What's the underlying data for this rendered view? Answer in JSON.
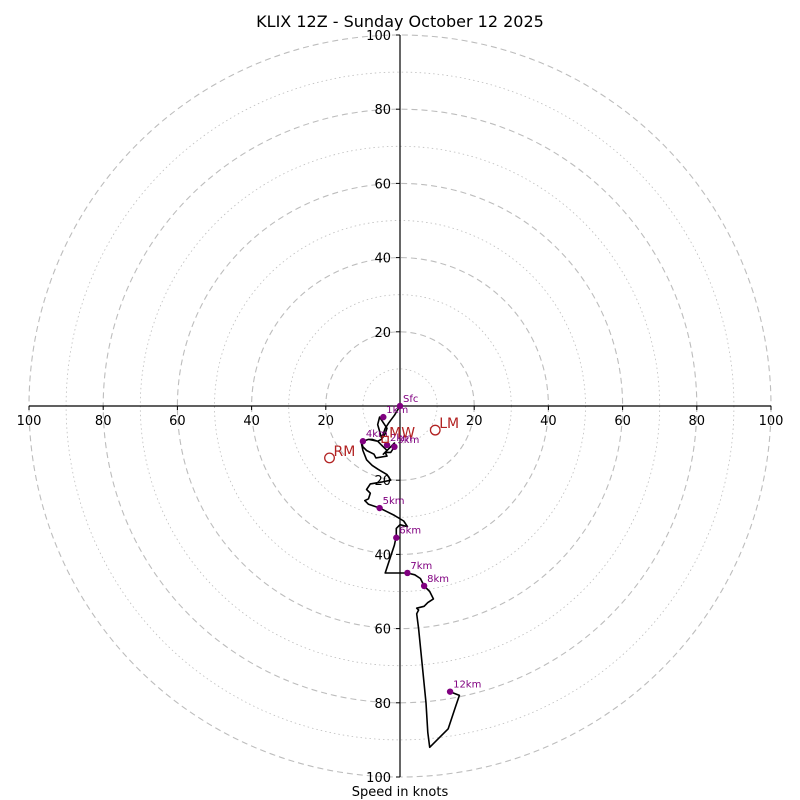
{
  "chart_data": {
    "type": "hodograph",
    "title": "KLIX 12Z - Sunday October 12 2025",
    "xlabel": "Speed in knots",
    "xlim": [
      -100,
      100
    ],
    "ylim": [
      -100,
      100
    ],
    "major_rings": [
      20,
      40,
      60,
      80,
      100
    ],
    "minor_rings": [
      10,
      30,
      50,
      70,
      90
    ],
    "ticks": {
      "x": [
        {
          "v": -100,
          "label": "100"
        },
        {
          "v": -80,
          "label": "80"
        },
        {
          "v": -60,
          "label": "60"
        },
        {
          "v": -40,
          "label": "40"
        },
        {
          "v": -20,
          "label": "20"
        },
        {
          "v": 20,
          "label": "20"
        },
        {
          "v": 40,
          "label": "40"
        },
        {
          "v": 60,
          "label": "60"
        },
        {
          "v": 80,
          "label": "80"
        },
        {
          "v": 100,
          "label": "100"
        }
      ],
      "y_pos": [
        {
          "v": 20,
          "label": "20"
        },
        {
          "v": 40,
          "label": "40"
        },
        {
          "v": 60,
          "label": "60"
        },
        {
          "v": 80,
          "label": "80"
        },
        {
          "v": 100,
          "label": "100"
        }
      ],
      "y_neg": [
        {
          "v": -20,
          "label": "20"
        },
        {
          "v": -40,
          "label": "40"
        },
        {
          "v": -60,
          "label": "60"
        },
        {
          "v": -80,
          "label": "80"
        },
        {
          "v": -100,
          "label": "100"
        }
      ]
    },
    "trace": {
      "name": "hodograph",
      "color": "#000000",
      "points": [
        [
          0,
          0
        ],
        [
          -1.5,
          -2.5
        ],
        [
          -3,
          -4.5
        ],
        [
          -4,
          -6
        ],
        [
          -4.5,
          -7.5
        ],
        [
          -5,
          -8.5
        ],
        [
          -6,
          -5
        ],
        [
          -5.5,
          -3
        ],
        [
          -4.5,
          -4.5
        ],
        [
          -3.5,
          -6
        ],
        [
          -4,
          -7.5
        ],
        [
          -5,
          -9
        ],
        [
          -6,
          -9.5
        ],
        [
          -7.5,
          -9
        ],
        [
          -8.5,
          -9
        ],
        [
          -10,
          -9.5
        ],
        [
          -8.5,
          -9
        ],
        [
          -6,
          -9.5
        ],
        [
          -5,
          -10.5
        ],
        [
          -4,
          -11.5
        ],
        [
          -3.5,
          -12
        ],
        [
          -4.5,
          -13
        ],
        [
          -2.5,
          -11
        ],
        [
          -1.5,
          -10
        ],
        [
          -1.5,
          -11
        ],
        [
          -2.5,
          -12.5
        ],
        [
          -4,
          -12.5
        ],
        [
          -3.5,
          -13.5
        ],
        [
          -6.5,
          -14
        ],
        [
          -7,
          -13
        ],
        [
          -9,
          -12
        ],
        [
          -10,
          -11
        ],
        [
          -10.5,
          -9.5
        ],
        [
          -10,
          -12
        ],
        [
          -9,
          -14.5
        ],
        [
          -7.5,
          -16
        ],
        [
          -6,
          -17
        ],
        [
          -3.5,
          -18.5
        ],
        [
          -2.5,
          -20
        ],
        [
          -5,
          -20.5
        ],
        [
          -8,
          -21
        ],
        [
          -9,
          -22.5
        ],
        [
          -8,
          -23.5
        ],
        [
          -8.5,
          -25
        ],
        [
          -9.5,
          -25.5
        ],
        [
          -8.5,
          -26.5
        ],
        [
          -5.5,
          -27.5
        ],
        [
          -3.5,
          -28.5
        ],
        [
          -1.5,
          -29.5
        ],
        [
          1,
          -31
        ],
        [
          2,
          -32.5
        ],
        [
          0,
          -32
        ],
        [
          -1,
          -33
        ],
        [
          -1,
          -34
        ],
        [
          -1,
          -35
        ],
        [
          -1.5,
          -37.5
        ],
        [
          -3,
          -42
        ],
        [
          -4,
          -45
        ],
        [
          2,
          -45
        ],
        [
          4,
          -45.5
        ],
        [
          5.5,
          -46.5
        ],
        [
          6.5,
          -48.5
        ],
        [
          8,
          -50
        ],
        [
          9,
          -52
        ],
        [
          7.5,
          -53
        ],
        [
          6.5,
          -54
        ],
        [
          4.5,
          -54.5
        ],
        [
          5,
          -55
        ],
        [
          4.5,
          -56
        ],
        [
          5,
          -60
        ],
        [
          6,
          -70
        ],
        [
          7,
          -80
        ],
        [
          7.5,
          -88
        ],
        [
          8,
          -92
        ],
        [
          11,
          -89
        ],
        [
          13,
          -87
        ],
        [
          14,
          -84
        ],
        [
          15,
          -81
        ],
        [
          16,
          -78
        ],
        [
          13.5,
          -77
        ]
      ]
    },
    "height_markers": [
      {
        "label": "Sfc",
        "u": 0,
        "v": 0
      },
      {
        "label": "1km",
        "u": -4.5,
        "v": -3
      },
      {
        "label": "2km",
        "u": -3.5,
        "v": -10.5
      },
      {
        "label": "3km",
        "u": -1.5,
        "v": -11
      },
      {
        "label": "4km",
        "u": -10,
        "v": -9.5
      },
      {
        "label": "5km",
        "u": -5.5,
        "v": -27.5
      },
      {
        "label": "6km",
        "u": -1,
        "v": -35.5
      },
      {
        "label": "7km",
        "u": 2,
        "v": -45
      },
      {
        "label": "8km",
        "u": 6.5,
        "v": -48.5
      },
      {
        "label": "12km",
        "u": 13.5,
        "v": -77
      }
    ],
    "motions": [
      {
        "label": "RM",
        "u": -19,
        "v": -14
      },
      {
        "label": "LM",
        "u": 9.5,
        "v": -6.5
      },
      {
        "label": "MW",
        "u": -4,
        "v": -9
      }
    ],
    "colors": {
      "trace": "#000000",
      "markers": "#800080",
      "motion": "#b22222",
      "grid": "#bdbdbd",
      "axes": "#000000"
    }
  }
}
